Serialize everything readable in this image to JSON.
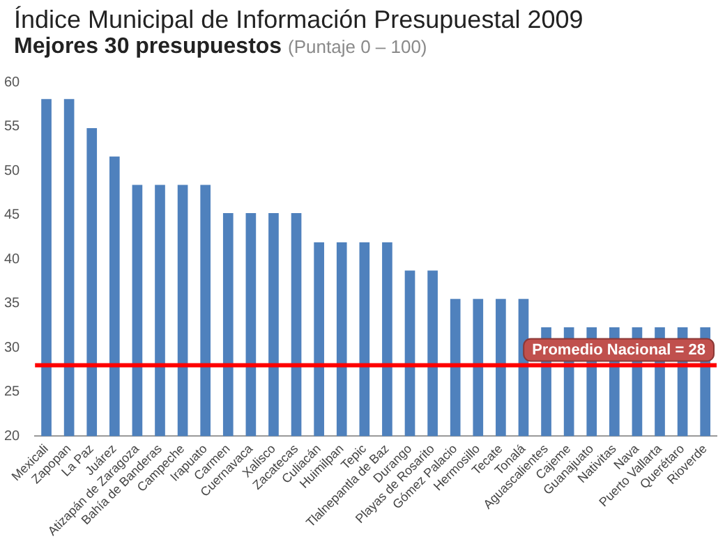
{
  "chart_data": {
    "type": "bar",
    "title": "Índice Municipal de Información Presupuestal 2009",
    "subtitle": "Mejores 30 presupuestos",
    "annotations": [
      "(Puntaje 0 – 100)"
    ],
    "categories": [
      "Mexicali",
      "Zapopan",
      "La Paz",
      "Juárez",
      "Atizapán de Zaragoza",
      "Bahía de Banderas",
      "Campeche",
      "Irapuato",
      "Carmen",
      "Cuernavaca",
      "Xalisco",
      "Zacatecas",
      "Culiacán",
      "Huimilpan",
      "Tepic",
      "Tlalnepantla de Baz",
      "Durango",
      "Playas de Rosarito",
      "Gómez Palacio",
      "Hermosillo",
      "Tecate",
      "Tonalá",
      "Aguascalientes",
      "Cajeme",
      "Guanajuato",
      "Nativitas",
      "Nava",
      "Puerto Vallarta",
      "Querétaro",
      "Rioverde"
    ],
    "values": [
      58.1,
      58.1,
      54.8,
      51.6,
      48.4,
      48.4,
      48.4,
      48.4,
      45.2,
      45.2,
      45.2,
      45.2,
      41.9,
      41.9,
      41.9,
      41.9,
      38.7,
      38.7,
      35.5,
      35.5,
      35.5,
      35.5,
      32.3,
      32.3,
      32.3,
      32.3,
      32.3,
      32.3,
      32.3,
      32.3
    ],
    "color": "#4f81bd",
    "ylim": [
      20,
      60
    ],
    "yticks": [
      20,
      25,
      30,
      35,
      40,
      45,
      50,
      55,
      60
    ],
    "ref_lines": [
      {
        "axis": "y",
        "value": 28,
        "label": "Promedio Nacional = 28",
        "color": "#ff0000"
      }
    ],
    "grid": false,
    "legend": false
  }
}
